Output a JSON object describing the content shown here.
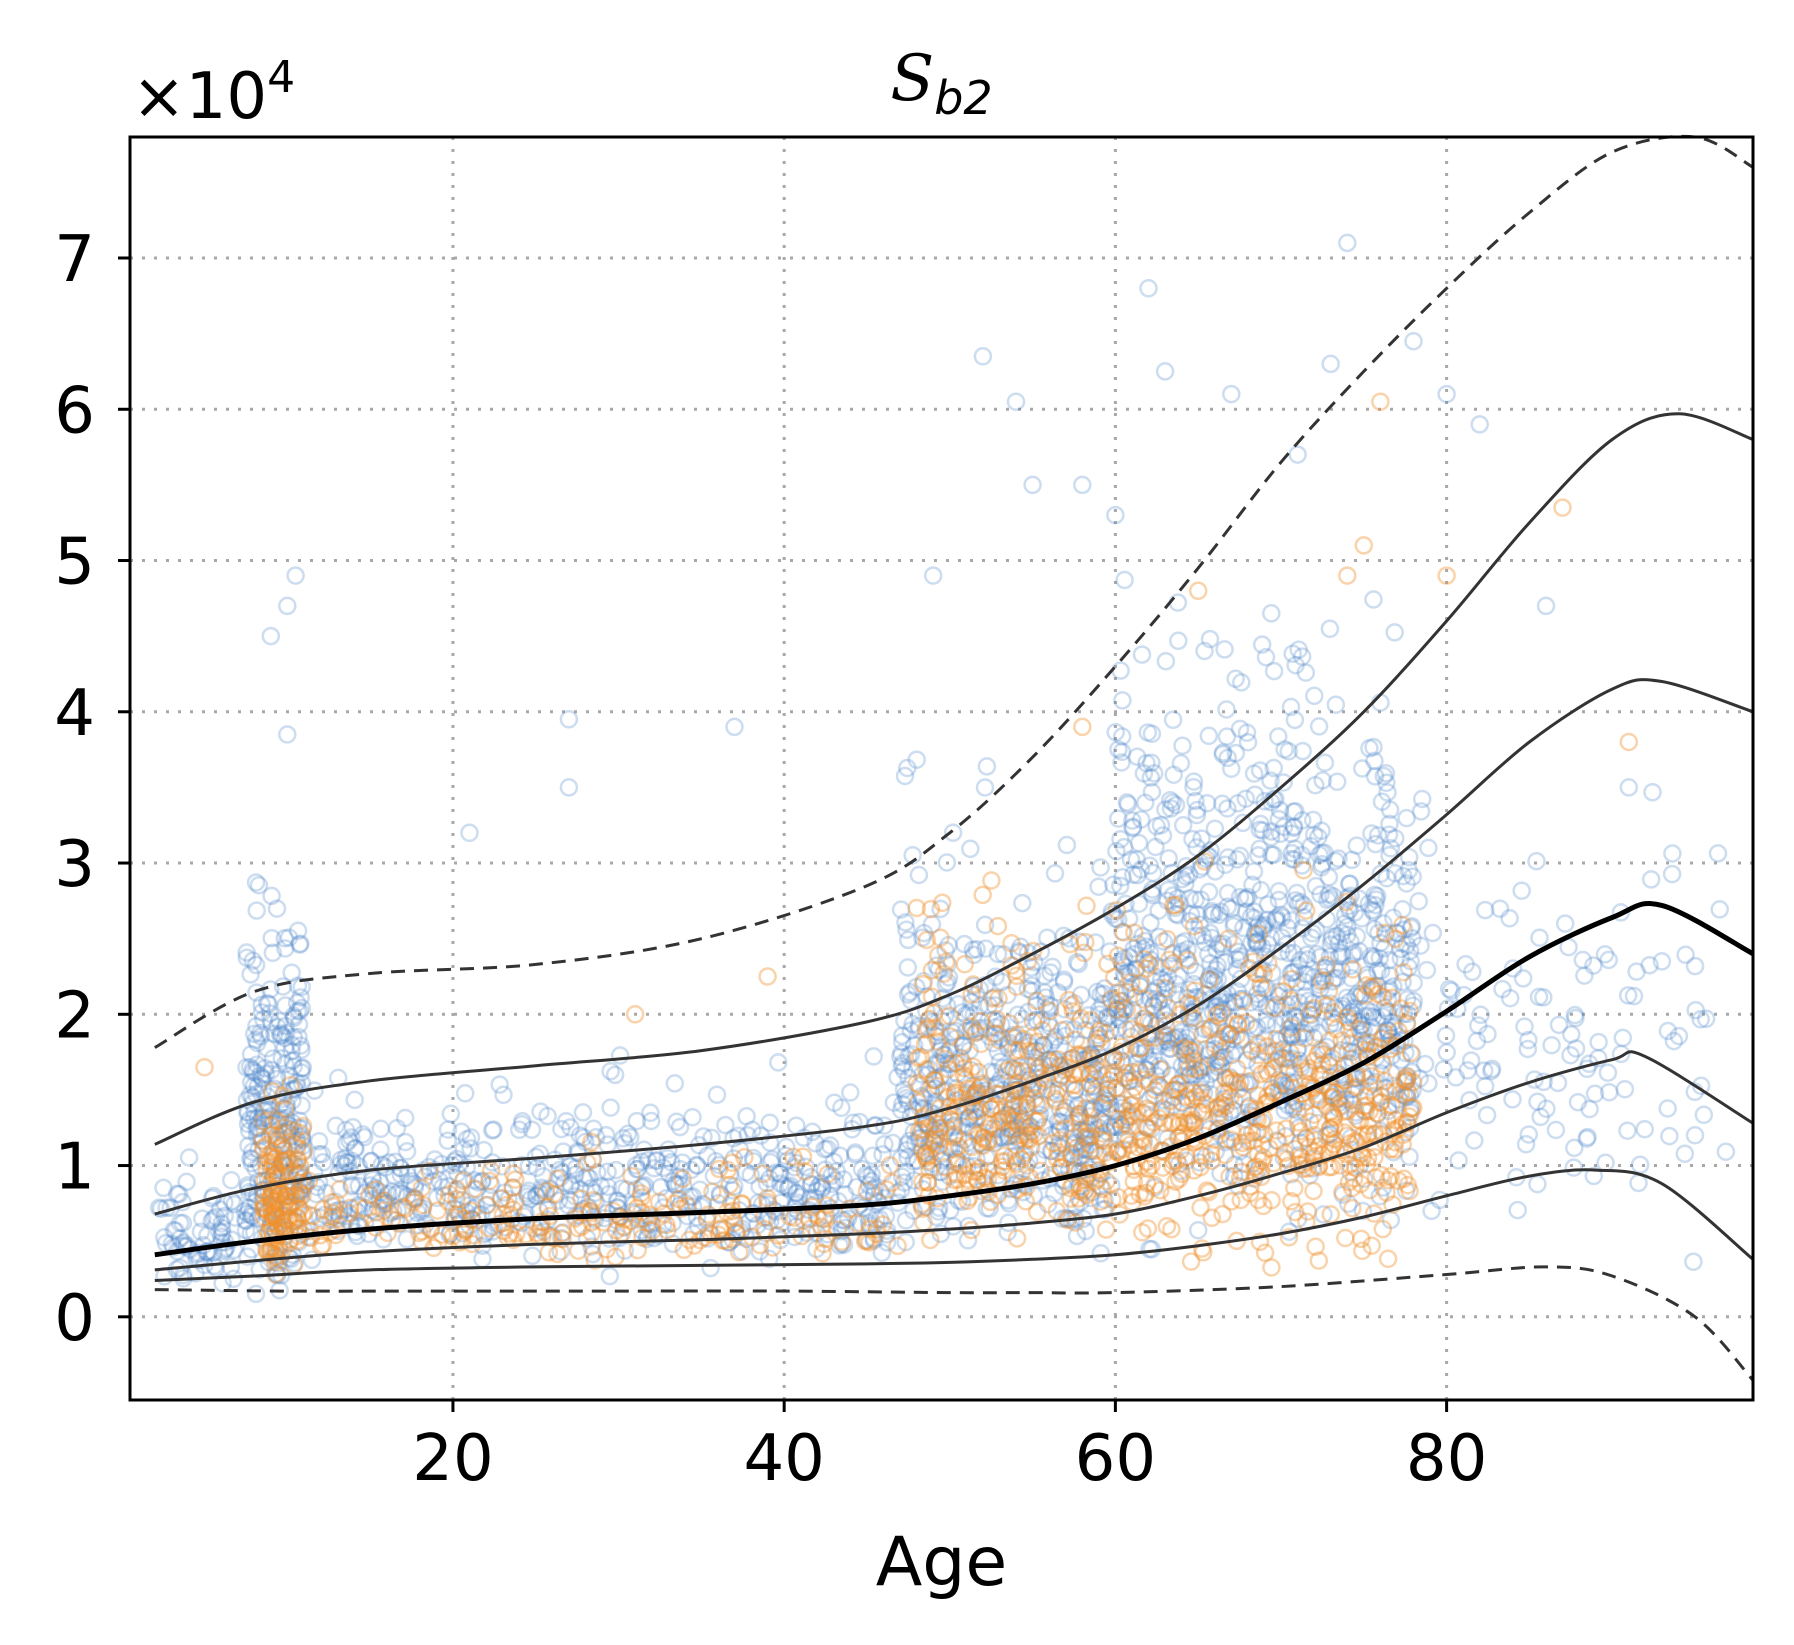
{
  "chart_data": {
    "type": "scatter",
    "title": {
      "main": "S",
      "sub": "b2"
    },
    "xlabel": "Age",
    "ylabel": "",
    "y_scale_factor": {
      "prefix": "×10",
      "exponent": "4"
    },
    "xlim": [
      0.5,
      98.5
    ],
    "ylim": [
      -0.55,
      7.8
    ],
    "xticks": [
      20,
      40,
      60,
      80
    ],
    "xtick_labels": [
      "20",
      "40",
      "60",
      "80"
    ],
    "yticks": [
      0,
      1,
      2,
      3,
      4,
      5,
      6,
      7
    ],
    "ytick_labels": [
      "0",
      "1",
      "2",
      "3",
      "4",
      "5",
      "6",
      "7"
    ],
    "grid": true,
    "legend": "none",
    "colors": {
      "series_a": "#4a86c8",
      "series_b": "#f0912c",
      "curve": "#000000"
    },
    "series": [
      {
        "marker": "open-circle",
        "color": "#4a86c8",
        "point_count_estimate": 9000,
        "clusters": [
          {
            "x_range": [
              2,
              8
            ],
            "y_center": 0.45,
            "y_spread": 0.25,
            "weight": 3
          },
          {
            "x_range": [
              7.5,
              11
            ],
            "y_center": 1.0,
            "y_spread": 0.7,
            "weight": 10
          },
          {
            "x_range": [
              11,
              47
            ],
            "y_center": 0.75,
            "y_spread": 0.35,
            "weight": 22
          },
          {
            "x_range": [
              47,
              60
            ],
            "y_center": 1.3,
            "y_spread": 0.7,
            "weight": 22
          },
          {
            "x_range": [
              60,
              78
            ],
            "y_center": 1.9,
            "y_spread": 1.0,
            "weight": 38
          },
          {
            "x_range": [
              78,
              97
            ],
            "y_center": 1.6,
            "y_spread": 0.8,
            "weight": 5
          }
        ],
        "outliers": [
          [
            9,
            4.5
          ],
          [
            10,
            4.7
          ],
          [
            10.5,
            4.9
          ],
          [
            10,
            3.85
          ],
          [
            21,
            3.2
          ],
          [
            27,
            3.95
          ],
          [
            27,
            3.5
          ],
          [
            37,
            3.9
          ],
          [
            49,
            4.9
          ],
          [
            52,
            6.35
          ],
          [
            54,
            6.05
          ],
          [
            55,
            5.5
          ],
          [
            58,
            5.5
          ],
          [
            60,
            5.3
          ],
          [
            62,
            6.8
          ],
          [
            63,
            6.25
          ],
          [
            67,
            6.1
          ],
          [
            71,
            5.7
          ],
          [
            73,
            6.3
          ],
          [
            74,
            7.1
          ],
          [
            78,
            6.45
          ],
          [
            80,
            6.1
          ],
          [
            82,
            5.9
          ],
          [
            86,
            4.7
          ],
          [
            91,
            3.5
          ],
          [
            93,
            2.35
          ],
          [
            95,
            1.2
          ]
        ]
      },
      {
        "marker": "open-circle",
        "color": "#f0912c",
        "point_count_estimate": 3500,
        "clusters": [
          {
            "x_range": [
              8.5,
              11
            ],
            "y_center": 0.7,
            "y_spread": 0.35,
            "weight": 12
          },
          {
            "x_range": [
              11,
              47
            ],
            "y_center": 0.6,
            "y_spread": 0.2,
            "weight": 18
          },
          {
            "x_range": [
              48,
              78
            ],
            "y_center": 1.2,
            "y_spread": 0.6,
            "weight": 70
          }
        ],
        "outliers": [
          [
            76,
            6.05
          ],
          [
            65,
            4.8
          ],
          [
            74,
            4.9
          ],
          [
            75,
            5.1
          ],
          [
            80,
            4.9
          ],
          [
            87,
            5.35
          ],
          [
            91,
            3.8
          ],
          [
            58,
            3.9
          ],
          [
            31,
            2.0
          ],
          [
            39,
            2.25
          ],
          [
            5,
            1.65
          ]
        ]
      }
    ],
    "curves": [
      {
        "style": "dashed",
        "width": "thin",
        "points": [
          [
            2,
            1.78
          ],
          [
            8,
            2.15
          ],
          [
            15,
            2.27
          ],
          [
            25,
            2.33
          ],
          [
            35,
            2.5
          ],
          [
            45,
            2.85
          ],
          [
            50,
            3.2
          ],
          [
            55,
            3.7
          ],
          [
            60,
            4.3
          ],
          [
            65,
            4.95
          ],
          [
            70,
            5.65
          ],
          [
            75,
            6.25
          ],
          [
            80,
            6.8
          ],
          [
            85,
            7.3
          ],
          [
            90,
            7.7
          ],
          [
            95,
            7.8
          ],
          [
            98.5,
            7.6
          ]
        ]
      },
      {
        "style": "solid",
        "width": "thin",
        "points": [
          [
            2,
            1.14
          ],
          [
            8,
            1.42
          ],
          [
            15,
            1.56
          ],
          [
            25,
            1.66
          ],
          [
            35,
            1.76
          ],
          [
            45,
            1.95
          ],
          [
            50,
            2.13
          ],
          [
            55,
            2.4
          ],
          [
            60,
            2.7
          ],
          [
            65,
            3.05
          ],
          [
            70,
            3.5
          ],
          [
            75,
            4.0
          ],
          [
            80,
            4.6
          ],
          [
            85,
            5.25
          ],
          [
            90,
            5.8
          ],
          [
            94,
            5.97
          ],
          [
            98.5,
            5.8
          ]
        ]
      },
      {
        "style": "solid",
        "width": "thin",
        "points": [
          [
            2,
            0.68
          ],
          [
            8,
            0.85
          ],
          [
            15,
            0.97
          ],
          [
            25,
            1.05
          ],
          [
            35,
            1.14
          ],
          [
            45,
            1.26
          ],
          [
            50,
            1.38
          ],
          [
            55,
            1.56
          ],
          [
            60,
            1.77
          ],
          [
            65,
            2.06
          ],
          [
            70,
            2.44
          ],
          [
            75,
            2.86
          ],
          [
            80,
            3.32
          ],
          [
            85,
            3.8
          ],
          [
            90,
            4.15
          ],
          [
            93,
            4.2
          ],
          [
            98.5,
            4.0
          ]
        ]
      },
      {
        "style": "solid",
        "width": "thick",
        "points": [
          [
            2,
            0.41
          ],
          [
            8,
            0.5
          ],
          [
            15,
            0.58
          ],
          [
            25,
            0.65
          ],
          [
            35,
            0.69
          ],
          [
            45,
            0.74
          ],
          [
            50,
            0.8
          ],
          [
            55,
            0.88
          ],
          [
            60,
            1.0
          ],
          [
            65,
            1.18
          ],
          [
            70,
            1.42
          ],
          [
            75,
            1.68
          ],
          [
            80,
            2.02
          ],
          [
            85,
            2.38
          ],
          [
            90,
            2.64
          ],
          [
            93,
            2.72
          ],
          [
            98.5,
            2.4
          ]
        ]
      },
      {
        "style": "solid",
        "width": "thin",
        "points": [
          [
            2,
            0.31
          ],
          [
            8,
            0.37
          ],
          [
            15,
            0.43
          ],
          [
            25,
            0.48
          ],
          [
            35,
            0.51
          ],
          [
            45,
            0.55
          ],
          [
            50,
            0.58
          ],
          [
            55,
            0.62
          ],
          [
            60,
            0.68
          ],
          [
            65,
            0.8
          ],
          [
            70,
            0.95
          ],
          [
            75,
            1.12
          ],
          [
            80,
            1.35
          ],
          [
            85,
            1.55
          ],
          [
            90,
            1.7
          ],
          [
            92,
            1.72
          ],
          [
            98.5,
            1.28
          ]
        ]
      },
      {
        "style": "solid",
        "width": "thin",
        "points": [
          [
            2,
            0.24
          ],
          [
            8,
            0.27
          ],
          [
            15,
            0.31
          ],
          [
            25,
            0.33
          ],
          [
            35,
            0.34
          ],
          [
            45,
            0.35
          ],
          [
            50,
            0.36
          ],
          [
            55,
            0.38
          ],
          [
            60,
            0.41
          ],
          [
            65,
            0.47
          ],
          [
            70,
            0.55
          ],
          [
            75,
            0.66
          ],
          [
            80,
            0.8
          ],
          [
            85,
            0.93
          ],
          [
            89,
            0.97
          ],
          [
            93,
            0.88
          ],
          [
            98.5,
            0.38
          ]
        ]
      },
      {
        "style": "dashed",
        "width": "thin",
        "points": [
          [
            2,
            0.18
          ],
          [
            10,
            0.17
          ],
          [
            20,
            0.17
          ],
          [
            30,
            0.17
          ],
          [
            40,
            0.17
          ],
          [
            50,
            0.16
          ],
          [
            55,
            0.16
          ],
          [
            60,
            0.16
          ],
          [
            70,
            0.2
          ],
          [
            80,
            0.28
          ],
          [
            86,
            0.33
          ],
          [
            90,
            0.27
          ],
          [
            95,
            0.0
          ],
          [
            98.5,
            -0.42
          ]
        ]
      }
    ]
  }
}
